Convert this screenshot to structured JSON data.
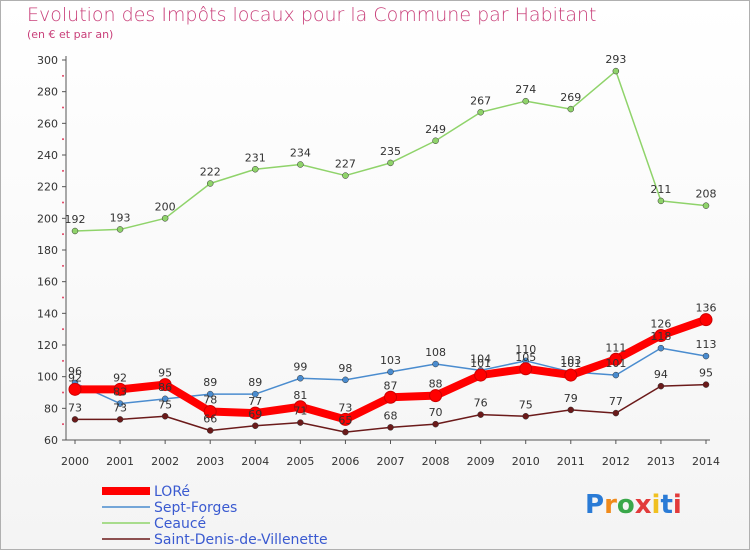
{
  "chart_data": {
    "type": "line",
    "title": "Evolution des Impôts locaux pour la Commune par Habitant",
    "subtitle": "(en € et par an)",
    "x": [
      "2000",
      "2001",
      "2002",
      "2003",
      "2004",
      "2005",
      "2006",
      "2007",
      "2008",
      "2009",
      "2010",
      "2011",
      "2012",
      "2013",
      "2014"
    ],
    "ylim": [
      60,
      300
    ],
    "yticks": [
      60,
      80,
      100,
      120,
      140,
      160,
      180,
      200,
      220,
      240,
      260,
      280,
      300
    ],
    "grid": false,
    "legend_position": "bottom-left",
    "series": [
      {
        "name": "Saint-Denis-de-Villenette",
        "color": "#6b1a1a",
        "values": [
          73,
          73,
          75,
          66,
          69,
          71,
          65,
          68,
          70,
          76,
          75,
          79,
          77,
          94,
          95
        ]
      },
      {
        "name": "Ceaucé",
        "color": "#8fd36a",
        "values": [
          192,
          193,
          200,
          222,
          231,
          234,
          227,
          235,
          249,
          267,
          274,
          269,
          293,
          211,
          208
        ]
      },
      {
        "name": "Sept-Forges",
        "color": "#4a8ccf",
        "values": [
          96,
          83,
          86,
          89,
          89,
          99,
          98,
          103,
          108,
          104,
          110,
          103,
          101,
          118,
          113
        ]
      },
      {
        "name": "LORé",
        "color": "#ff0000",
        "values": [
          92,
          92,
          95,
          78,
          77,
          81,
          73,
          87,
          88,
          101,
          105,
          101,
          111,
          126,
          136
        ]
      }
    ]
  },
  "logo": {
    "text": "Proxiti"
  }
}
